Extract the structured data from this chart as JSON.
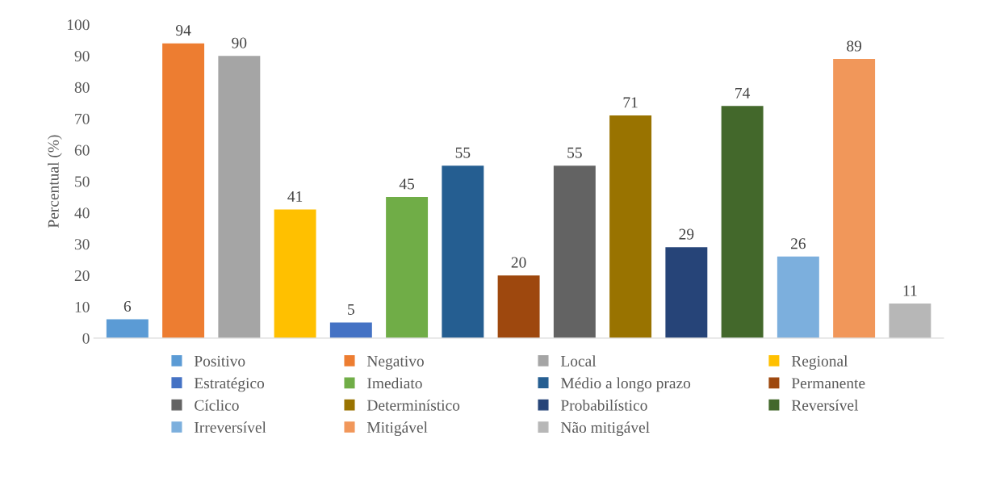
{
  "chart_data": {
    "type": "bar",
    "ylabel": "Percentual (%)",
    "categories": [
      null,
      null,
      null,
      null,
      null,
      null,
      null,
      null,
      null,
      null,
      null,
      null,
      null,
      null,
      null
    ],
    "series": [
      {
        "name": "Positivo",
        "color": "#5b9bd5",
        "values": [
          6,
          null,
          null,
          null,
          null,
          null,
          null,
          null,
          null,
          null,
          null,
          null,
          null,
          null,
          null
        ]
      },
      {
        "name": "Negativo",
        "color": "#ed7d31",
        "values": [
          null,
          94,
          null,
          null,
          null,
          null,
          null,
          null,
          null,
          null,
          null,
          null,
          null,
          null,
          null
        ]
      },
      {
        "name": "Local",
        "color": "#a5a5a5",
        "values": [
          null,
          null,
          90,
          null,
          null,
          null,
          null,
          null,
          null,
          null,
          null,
          null,
          null,
          null,
          null
        ]
      },
      {
        "name": "Regional",
        "color": "#ffc000",
        "values": [
          null,
          null,
          null,
          41,
          null,
          null,
          null,
          null,
          null,
          null,
          null,
          null,
          null,
          null,
          null
        ]
      },
      {
        "name": "Estratégico",
        "color": "#4472c4",
        "values": [
          null,
          null,
          null,
          null,
          5,
          null,
          null,
          null,
          null,
          null,
          null,
          null,
          null,
          null,
          null
        ]
      },
      {
        "name": "Imediato",
        "color": "#70ad47",
        "values": [
          null,
          null,
          null,
          null,
          null,
          45,
          null,
          null,
          null,
          null,
          null,
          null,
          null,
          null,
          null
        ]
      },
      {
        "name": "Médio a longo prazo",
        "color": "#255e91",
        "values": [
          null,
          null,
          null,
          null,
          null,
          null,
          55,
          null,
          null,
          null,
          null,
          null,
          null,
          null,
          null
        ]
      },
      {
        "name": "Permanente",
        "color": "#9e480e",
        "values": [
          null,
          null,
          null,
          null,
          null,
          null,
          null,
          20,
          null,
          null,
          null,
          null,
          null,
          null,
          null
        ]
      },
      {
        "name": "Cíclico",
        "color": "#636363",
        "values": [
          null,
          null,
          null,
          null,
          null,
          null,
          null,
          null,
          55,
          null,
          null,
          null,
          null,
          null,
          null
        ]
      },
      {
        "name": "Determinístico",
        "color": "#997300",
        "values": [
          null,
          null,
          null,
          null,
          null,
          null,
          null,
          null,
          null,
          71,
          null,
          null,
          null,
          null,
          null
        ]
      },
      {
        "name": "Probabilístico",
        "color": "#264478",
        "values": [
          null,
          null,
          null,
          null,
          null,
          null,
          null,
          null,
          null,
          null,
          29,
          null,
          null,
          null,
          null
        ]
      },
      {
        "name": "Reversível",
        "color": "#43682b",
        "values": [
          null,
          null,
          null,
          null,
          null,
          null,
          null,
          null,
          null,
          null,
          null,
          74,
          null,
          null,
          null
        ]
      },
      {
        "name": "Irreversível",
        "color": "#7cafdd",
        "values": [
          null,
          null,
          null,
          null,
          null,
          null,
          null,
          null,
          null,
          null,
          null,
          null,
          26,
          null,
          null
        ]
      },
      {
        "name": "Mitigável",
        "color": "#f1975a",
        "values": [
          null,
          null,
          null,
          null,
          null,
          null,
          null,
          null,
          null,
          null,
          null,
          null,
          null,
          89,
          null
        ]
      },
      {
        "name": "Não mitigável",
        "color": "#b7b7b7",
        "values": [
          null,
          null,
          null,
          null,
          null,
          null,
          null,
          null,
          null,
          null,
          null,
          null,
          null,
          null,
          11
        ]
      }
    ],
    "ylim": [
      0,
      100
    ],
    "yticks": [
      0,
      10,
      20,
      30,
      40,
      50,
      60,
      70,
      80,
      90,
      100
    ],
    "data_labels": true,
    "legend": "bottom",
    "grid": false
  }
}
